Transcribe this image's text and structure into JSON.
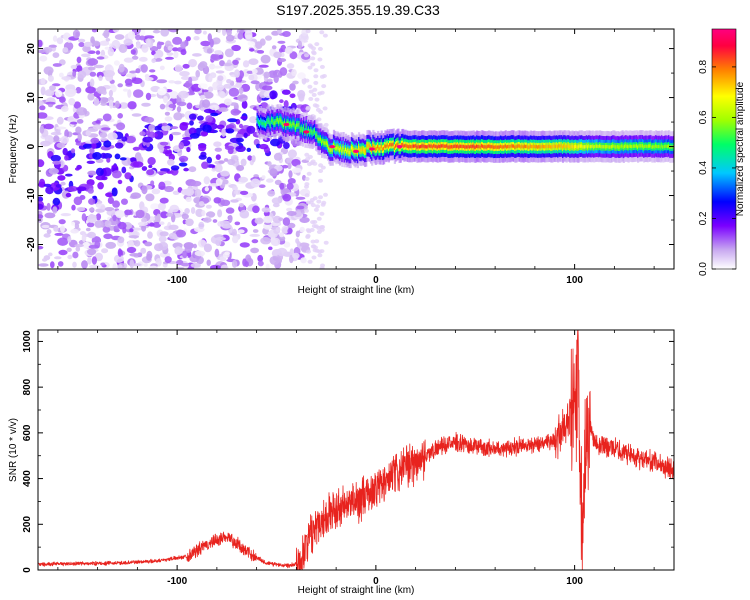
{
  "title": "S197.2025.355.19.39.C33",
  "chart_data": [
    {
      "type": "heatmap",
      "xlabel": "Height of straight line (km)",
      "ylabel": "Frequency (Hz)",
      "xlim": [
        -170,
        150
      ],
      "ylim": [
        -25,
        24
      ],
      "xticks": [
        -100,
        0,
        100
      ],
      "xtick_labels": [
        "-100",
        "0",
        "100"
      ],
      "yticks": [
        -20,
        -10,
        0,
        10,
        20
      ],
      "ytick_labels": [
        "-20",
        "-10",
        "0",
        "10",
        "20"
      ],
      "colorbar": {
        "label": "Normalized spectral amplitude",
        "range": [
          0,
          0.95
        ],
        "ticks": [
          0.0,
          0.2,
          0.4,
          0.6,
          0.8
        ],
        "tick_labels": [
          "0.0",
          "0.2",
          "0.4",
          "0.6",
          "0.8"
        ],
        "colormap": [
          "#ffffff",
          "#c8a8f0",
          "#7a00ff",
          "#0000ff",
          "#00c8ff",
          "#00ff66",
          "#a0ff00",
          "#ffff00",
          "#ff8000",
          "#ff0040",
          "#ff0080"
        ]
      },
      "ridge": [
        {
          "x": -60,
          "y": 5,
          "amp": 0.45
        },
        {
          "x": -50,
          "y": 5,
          "amp": 0.55
        },
        {
          "x": -40,
          "y": 4,
          "amp": 0.55
        },
        {
          "x": -32,
          "y": 3,
          "amp": 0.5
        },
        {
          "x": -25,
          "y": 0,
          "amp": 0.6
        },
        {
          "x": -15,
          "y": -1,
          "amp": 0.65
        },
        {
          "x": 0,
          "y": 0,
          "amp": 0.75
        },
        {
          "x": 20,
          "y": 0,
          "amp": 0.8
        },
        {
          "x": 50,
          "y": 0,
          "amp": 0.8
        },
        {
          "x": 98,
          "y": 0,
          "amp": 0.7
        },
        {
          "x": 110,
          "y": 0,
          "amp": 0.6
        },
        {
          "x": 150,
          "y": 0,
          "amp": 0.55
        }
      ]
    },
    {
      "type": "line",
      "xlabel": "Height of straight line (km)",
      "ylabel": "SNR (10 * v/v)",
      "xlim": [
        -170,
        150
      ],
      "ylim": [
        0,
        1050
      ],
      "xticks": [
        -100,
        0,
        100
      ],
      "xtick_labels": [
        "-100",
        "0",
        "100"
      ],
      "yticks": [
        0,
        200,
        400,
        600,
        800,
        1000
      ],
      "ytick_labels": [
        "0",
        "200",
        "400",
        "600",
        "800",
        "1000"
      ],
      "color": "#e8231e",
      "series": [
        {
          "name": "SNR",
          "x": [
            -170,
            -150,
            -130,
            -110,
            -95,
            -85,
            -75,
            -65,
            -55,
            -45,
            -38,
            -35,
            -30,
            -25,
            -20,
            -15,
            -10,
            -5,
            0,
            5,
            10,
            15,
            20,
            25,
            30,
            40,
            50,
            60,
            70,
            80,
            90,
            95,
            100,
            102,
            103,
            104,
            106,
            110,
            120,
            130,
            140,
            150
          ],
          "values": [
            25,
            28,
            30,
            40,
            60,
            110,
            150,
            80,
            30,
            20,
            30,
            120,
            200,
            240,
            260,
            280,
            300,
            320,
            360,
            380,
            420,
            450,
            470,
            500,
            530,
            560,
            540,
            530,
            540,
            550,
            570,
            620,
            700,
            900,
            300,
            250,
            700,
            560,
            530,
            500,
            470,
            440
          ]
        }
      ]
    }
  ]
}
